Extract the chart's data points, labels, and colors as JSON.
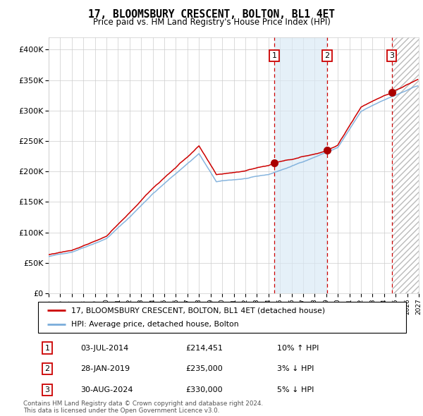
{
  "title": "17, BLOOMSBURY CRESCENT, BOLTON, BL1 4ET",
  "subtitle": "Price paid vs. HM Land Registry's House Price Index (HPI)",
  "legend_line1": "17, BLOOMSBURY CRESCENT, BOLTON, BL1 4ET (detached house)",
  "legend_line2": "HPI: Average price, detached house, Bolton",
  "transactions": [
    {
      "id": 1,
      "date": "03-JUL-2014",
      "price": 214451,
      "price_str": "£214,451",
      "hpi_rel": "10% ↑ HPI",
      "year": 2014.5
    },
    {
      "id": 2,
      "date": "28-JAN-2019",
      "price": 235000,
      "price_str": "£235,000",
      "hpi_rel": "3% ↓ HPI",
      "year": 2019.08
    },
    {
      "id": 3,
      "date": "30-AUG-2024",
      "price": 330000,
      "price_str": "£330,000",
      "hpi_rel": "5% ↓ HPI",
      "year": 2024.67
    }
  ],
  "shaded_region": [
    2014.5,
    2019.08
  ],
  "hatch_region_start": 2024.67,
  "red_line_color": "#cc0000",
  "blue_line_color": "#7aaddb",
  "marker_color": "#aa0000",
  "vline_color": "#cc0000",
  "shaded_color": "#d8e8f5",
  "footer": "Contains HM Land Registry data © Crown copyright and database right 2024.\nThis data is licensed under the Open Government Licence v3.0.",
  "ylim": [
    0,
    420000
  ],
  "xlim_start": 1995.0,
  "xlim_end": 2027.0,
  "yticks": [
    0,
    50000,
    100000,
    150000,
    200000,
    250000,
    300000,
    350000,
    400000
  ],
  "ytick_labels": [
    "£0",
    "£50K",
    "£100K",
    "£150K",
    "£200K",
    "£250K",
    "£300K",
    "£350K",
    "£400K"
  ],
  "xticks": [
    1995,
    1996,
    1997,
    1998,
    1999,
    2000,
    2001,
    2002,
    2003,
    2004,
    2005,
    2006,
    2007,
    2008,
    2009,
    2010,
    2011,
    2012,
    2013,
    2014,
    2015,
    2016,
    2017,
    2018,
    2019,
    2020,
    2021,
    2022,
    2023,
    2024,
    2025,
    2026,
    2027
  ]
}
